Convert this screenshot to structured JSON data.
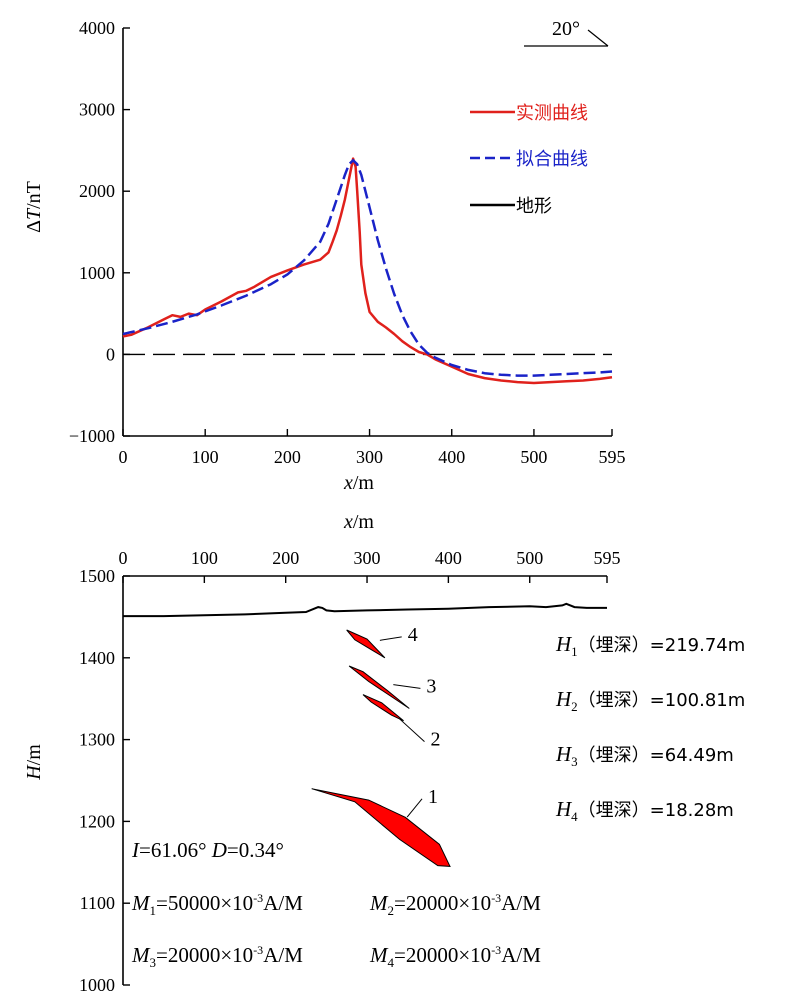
{
  "chart_data": [
    {
      "type": "line",
      "xlabel": "x/m",
      "ylabel": "ΔT/nT",
      "xlim": [
        0,
        595
      ],
      "ylim": [
        -1000,
        4000
      ],
      "x_ticks": [
        "0",
        "100",
        "200",
        "300",
        "400",
        "500",
        "595"
      ],
      "y_ticks": [
        "4000",
        "3000",
        "2000",
        "1000",
        "0",
        "−1000"
      ],
      "x_tick_values": [
        0,
        100,
        200,
        300,
        400,
        500,
        595
      ],
      "y_tick_values": [
        4000,
        3000,
        2000,
        1000,
        0,
        -1000
      ],
      "angle_label": "20°",
      "legend_position": "top-right",
      "zero_line": "dashed",
      "series": [
        {
          "name": "实测曲线",
          "color": "#e0211c",
          "style": "solid",
          "x": [
            0,
            10,
            30,
            50,
            60,
            70,
            80,
            90,
            100,
            120,
            140,
            150,
            160,
            180,
            200,
            220,
            240,
            250,
            255,
            260,
            265,
            270,
            275,
            280,
            283,
            285,
            288,
            290,
            295,
            300,
            310,
            320,
            330,
            340,
            350,
            360,
            370,
            380,
            400,
            420,
            440,
            460,
            480,
            500,
            520,
            540,
            560,
            580,
            595
          ],
          "y": [
            220,
            240,
            330,
            430,
            480,
            460,
            500,
            480,
            550,
            650,
            760,
            780,
            830,
            950,
            1030,
            1100,
            1160,
            1250,
            1380,
            1520,
            1700,
            1900,
            2150,
            2400,
            2300,
            2000,
            1500,
            1100,
            750,
            520,
            400,
            330,
            250,
            160,
            90,
            30,
            0,
            -60,
            -150,
            -240,
            -290,
            -320,
            -340,
            -350,
            -340,
            -330,
            -320,
            -300,
            -280
          ]
        },
        {
          "name": "拟合曲线",
          "color": "#1a23c8",
          "style": "dashed",
          "x": [
            0,
            30,
            60,
            90,
            120,
            150,
            180,
            200,
            220,
            240,
            250,
            260,
            270,
            275,
            280,
            285,
            290,
            300,
            310,
            320,
            330,
            340,
            350,
            360,
            370,
            380,
            400,
            420,
            440,
            460,
            480,
            500,
            520,
            540,
            560,
            580,
            595
          ],
          "y": [
            250,
            320,
            400,
            490,
            600,
            720,
            860,
            980,
            1150,
            1380,
            1600,
            1900,
            2200,
            2330,
            2380,
            2330,
            2200,
            1800,
            1400,
            1050,
            740,
            480,
            280,
            120,
            20,
            -40,
            -130,
            -190,
            -230,
            -250,
            -260,
            -260,
            -250,
            -240,
            -230,
            -220,
            -210
          ]
        },
        {
          "name": "地形",
          "color": "#000000",
          "style": "solid",
          "x": [],
          "y": []
        }
      ]
    },
    {
      "type": "diagram",
      "xlabel": "x/m",
      "ylabel": "H/m",
      "xlim": [
        0,
        595
      ],
      "ylim": [
        1000,
        1500
      ],
      "x_ticks": [
        "0",
        "100",
        "200",
        "300",
        "400",
        "500",
        "595"
      ],
      "y_ticks": [
        "1500",
        "1400",
        "1300",
        "1200",
        "1100",
        "1000"
      ],
      "x_tick_values": [
        0,
        100,
        200,
        300,
        400,
        500,
        595
      ],
      "y_tick_values": [
        1500,
        1400,
        1300,
        1200,
        1100,
        1000
      ],
      "terrain": {
        "x": [
          0,
          50,
          100,
          150,
          200,
          225,
          235,
          240,
          245,
          250,
          260,
          300,
          350,
          400,
          450,
          500,
          520,
          540,
          545,
          555,
          570,
          595
        ],
        "y": [
          1451,
          1451,
          1452,
          1453,
          1455,
          1456,
          1460,
          1462,
          1461,
          1458,
          1457,
          1458,
          1459,
          1460,
          1462,
          1463,
          1462,
          1464,
          1466,
          1462,
          1461,
          1461
        ]
      },
      "bodies": [
        {
          "label": "1",
          "color": "#ff0000",
          "polygon": [
            [
              232,
              1240
            ],
            [
              285,
              1224
            ],
            [
              340,
              1178
            ],
            [
              387,
              1146
            ],
            [
              402,
              1145
            ],
            [
              389,
              1172
            ],
            [
              347,
              1205
            ],
            [
              302,
              1226
            ]
          ],
          "label_pos": [
            375,
            1230
          ]
        },
        {
          "label": "2",
          "color": "#ff0000",
          "polygon": [
            [
              295,
              1355
            ],
            [
              318,
              1345
            ],
            [
              345,
              1323
            ],
            [
              330,
              1330
            ],
            [
              305,
              1346
            ]
          ],
          "label_pos": [
            378,
            1300
          ]
        },
        {
          "label": "3",
          "color": "#ff0000",
          "polygon": [
            [
              278,
              1390
            ],
            [
              302,
              1371
            ],
            [
              352,
              1338
            ],
            [
              325,
              1360
            ],
            [
              295,
              1383
            ]
          ],
          "label_pos": [
            373,
            1365
          ]
        },
        {
          "label": "4",
          "color": "#ff0000",
          "polygon": [
            [
              275,
              1434
            ],
            [
              300,
              1423
            ],
            [
              322,
              1400
            ],
            [
              305,
              1410
            ],
            [
              285,
              1422
            ]
          ],
          "label_pos": [
            350,
            1428
          ]
        }
      ],
      "depths": [
        {
          "symbol": "H",
          "sub": "1",
          "text": "（埋深）=219.74m"
        },
        {
          "symbol": "H",
          "sub": "2",
          "text": "（埋深）=100.81m"
        },
        {
          "symbol": "H",
          "sub": "3",
          "text": "（埋深）=64.49m"
        },
        {
          "symbol": "H",
          "sub": "4",
          "text": "（埋深）=18.28m"
        }
      ],
      "inclination": {
        "I_sym": "I",
        "I_val": "=61.06°",
        "D_sym": "D",
        "D_val": "=0.34°"
      },
      "magnetizations": [
        {
          "symbol": "M",
          "sub": "1",
          "value": "=50000×10",
          "exp": "-3",
          "unit": "A/M"
        },
        {
          "symbol": "M",
          "sub": "2",
          "value": "=20000×10",
          "exp": "-3",
          "unit": "A/M"
        },
        {
          "symbol": "M",
          "sub": "3",
          "value": "=20000×10",
          "exp": "-3",
          "unit": "A/M"
        },
        {
          "symbol": "M",
          "sub": "4",
          "value": "=20000×10",
          "exp": "-3",
          "unit": "A/M"
        }
      ]
    }
  ]
}
